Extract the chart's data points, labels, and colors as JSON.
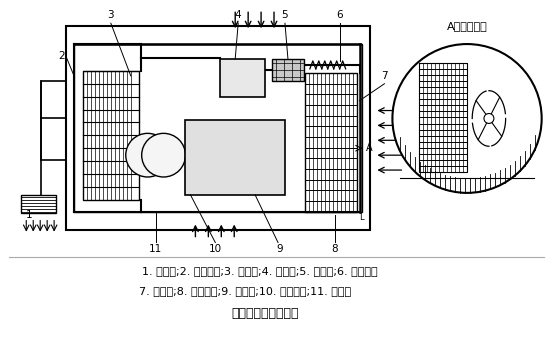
{
  "title": "电梯空调系统示意图",
  "bg_color": "#ffffff",
  "fig_width": 5.54,
  "fig_height": 3.55,
  "dpi": 100,
  "label_line1": "1. 散流器;2. 空调壳体;3. 蒸发器;4. 压缩机;5. 过滤器;6. 毛细管；",
  "label_line2": "7. 冷凝器;8. 轴流风扇;9. 电动机;10. 离心风机;11. 积水盘",
  "side_view_title": "A向局部视图"
}
